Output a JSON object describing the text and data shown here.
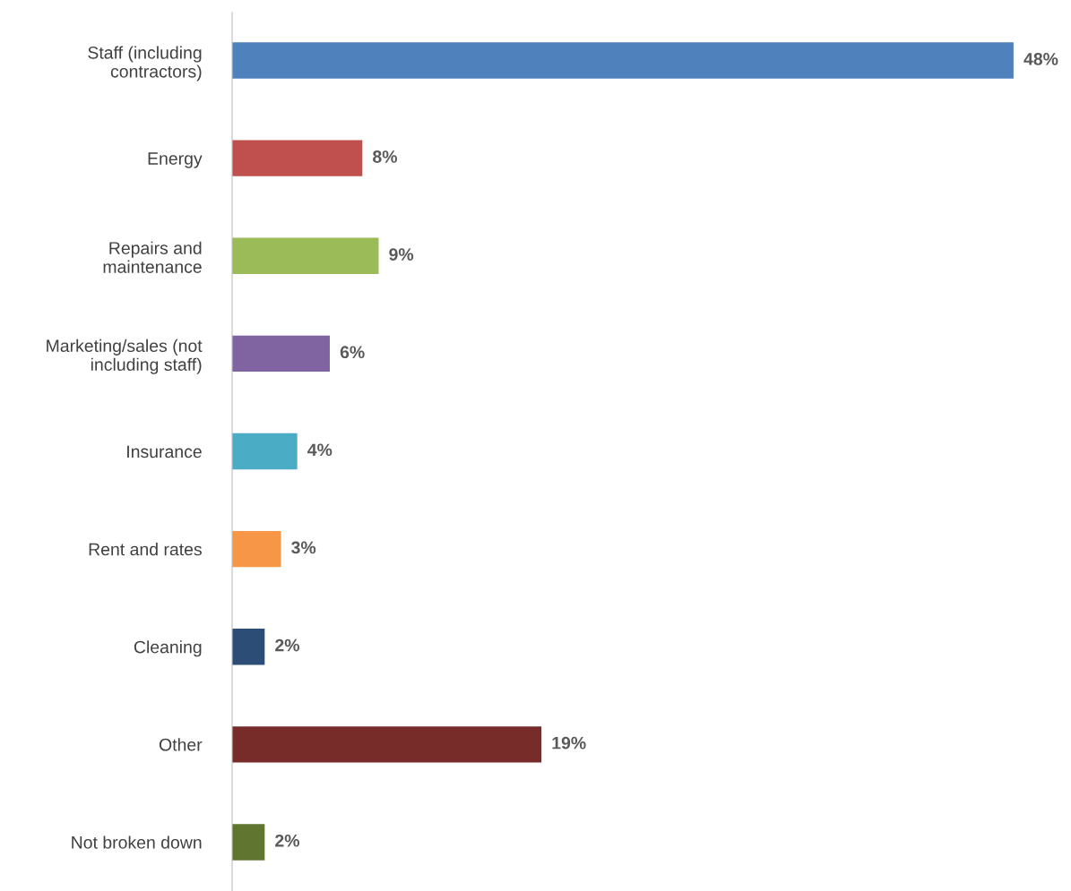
{
  "chart_data": {
    "type": "bar",
    "orientation": "horizontal",
    "categories": [
      "Staff (including\ncontractors)",
      "Energy",
      "Repairs and\nmaintenance",
      "Marketing/sales (not\nincluding staff)",
      "Insurance",
      "Rent and rates",
      "Cleaning",
      "Other",
      "Not broken down"
    ],
    "values": [
      48,
      8,
      9,
      6,
      4,
      3,
      2,
      19,
      2
    ],
    "colors": [
      "#4f81bd",
      "#c0504d",
      "#9bbb59",
      "#8064a2",
      "#4bacc6",
      "#f79646",
      "#2c4d75",
      "#772c2a",
      "#5f7530"
    ],
    "value_labels": [
      "48%",
      "8%",
      "9%",
      "6%",
      "4%",
      "3%",
      "2%",
      "19%",
      "2%"
    ],
    "grid": false,
    "legend": false
  }
}
